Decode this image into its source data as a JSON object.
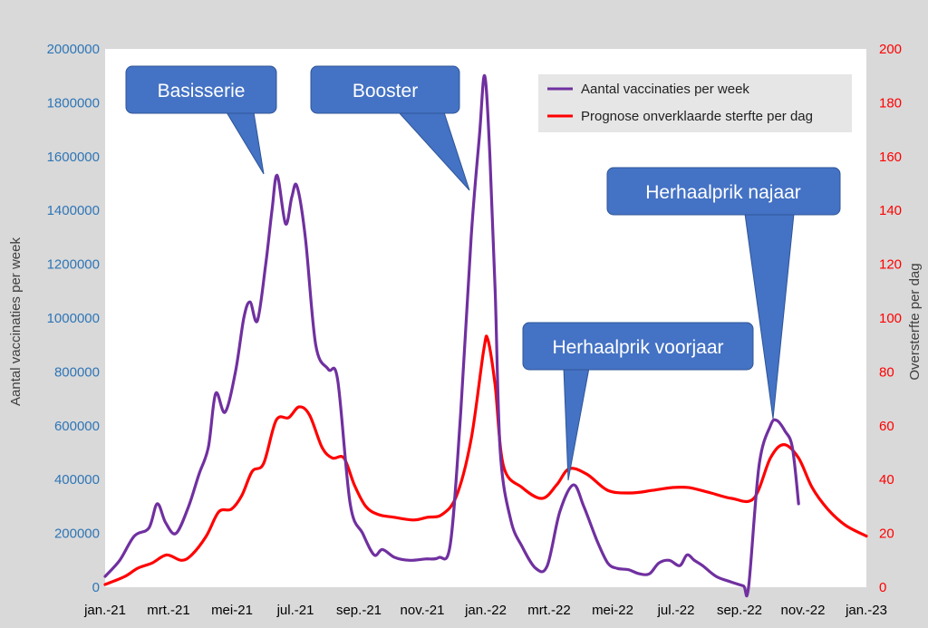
{
  "chart_data": {
    "type": "line",
    "title": "",
    "x_ticks": [
      "jan.-21",
      "mrt.-21",
      "mei-21",
      "jul.-21",
      "sep.-21",
      "nov.-21",
      "jan.-22",
      "mrt.-22",
      "mei-22",
      "jul.-22",
      "sep.-22",
      "nov.-22",
      "jan.-23"
    ],
    "x_range": [
      "2021-01-01",
      "2023-01-01"
    ],
    "ylabel_left": "Aantal vaccinaties per week",
    "ylabel_right": "Oversterfte per dag",
    "ylim_left": [
      0,
      2000000
    ],
    "ylim_right": [
      0,
      200
    ],
    "yticks_left": [
      "0",
      "200000",
      "400000",
      "600000",
      "800000",
      "1000000",
      "1200000",
      "1400000",
      "1600000",
      "1800000",
      "2000000"
    ],
    "yticks_right": [
      "0",
      "20",
      "40",
      "60",
      "80",
      "100",
      "120",
      "140",
      "160",
      "180",
      "200"
    ],
    "grid": false,
    "legend_position": "top-right",
    "legend": [
      {
        "label": "Aantal vaccinaties per week",
        "color": "#7030a0"
      },
      {
        "label": "Prognose onverklaarde sterfte per dag",
        "color": "#ff0000"
      }
    ],
    "series": [
      {
        "name": "Aantal vaccinaties per week",
        "axis": "left",
        "color": "#7030a0",
        "points": [
          [
            "2021-01-01",
            40000
          ],
          [
            "2021-01-15",
            100000
          ],
          [
            "2021-01-29",
            190000
          ],
          [
            "2021-02-12",
            220000
          ],
          [
            "2021-02-20",
            310000
          ],
          [
            "2021-02-28",
            240000
          ],
          [
            "2021-03-10",
            200000
          ],
          [
            "2021-03-22",
            300000
          ],
          [
            "2021-04-01",
            420000
          ],
          [
            "2021-04-10",
            520000
          ],
          [
            "2021-04-17",
            720000
          ],
          [
            "2021-04-26",
            650000
          ],
          [
            "2021-05-06",
            800000
          ],
          [
            "2021-05-14",
            1000000
          ],
          [
            "2021-05-20",
            1060000
          ],
          [
            "2021-05-27",
            990000
          ],
          [
            "2021-06-04",
            1200000
          ],
          [
            "2021-06-10",
            1400000
          ],
          [
            "2021-06-15",
            1530000
          ],
          [
            "2021-06-23",
            1350000
          ],
          [
            "2021-06-29",
            1450000
          ],
          [
            "2021-07-04",
            1490000
          ],
          [
            "2021-07-12",
            1300000
          ],
          [
            "2021-07-22",
            900000
          ],
          [
            "2021-08-03",
            810000
          ],
          [
            "2021-08-12",
            770000
          ],
          [
            "2021-08-24",
            310000
          ],
          [
            "2021-09-05",
            200000
          ],
          [
            "2021-09-16",
            120000
          ],
          [
            "2021-09-24",
            140000
          ],
          [
            "2021-10-06",
            110000
          ],
          [
            "2021-10-20",
            100000
          ],
          [
            "2021-11-04",
            105000
          ],
          [
            "2021-11-17",
            110000
          ],
          [
            "2021-11-28",
            160000
          ],
          [
            "2021-12-08",
            650000
          ],
          [
            "2021-12-18",
            1300000
          ],
          [
            "2021-12-26",
            1680000
          ],
          [
            "2021-12-31",
            1900000
          ],
          [
            "2022-01-05",
            1600000
          ],
          [
            "2022-01-10",
            1100000
          ],
          [
            "2022-01-15",
            500000
          ],
          [
            "2022-01-25",
            250000
          ],
          [
            "2022-02-05",
            150000
          ],
          [
            "2022-02-18",
            70000
          ],
          [
            "2022-03-01",
            80000
          ],
          [
            "2022-03-13",
            280000
          ],
          [
            "2022-03-26",
            380000
          ],
          [
            "2022-04-05",
            300000
          ],
          [
            "2022-04-18",
            170000
          ],
          [
            "2022-04-28",
            90000
          ],
          [
            "2022-05-07",
            70000
          ],
          [
            "2022-05-18",
            65000
          ],
          [
            "2022-05-28",
            50000
          ],
          [
            "2022-06-07",
            50000
          ],
          [
            "2022-06-16",
            90000
          ],
          [
            "2022-06-26",
            100000
          ],
          [
            "2022-07-06",
            80000
          ],
          [
            "2022-07-13",
            120000
          ],
          [
            "2022-07-20",
            100000
          ],
          [
            "2022-07-28",
            80000
          ],
          [
            "2022-08-10",
            40000
          ],
          [
            "2022-08-24",
            20000
          ],
          [
            "2022-09-05",
            5000
          ],
          [
            "2022-09-10",
            0
          ],
          [
            "2022-09-20",
            450000
          ],
          [
            "2022-10-01",
            600000
          ],
          [
            "2022-10-07",
            620000
          ],
          [
            "2022-10-15",
            580000
          ],
          [
            "2022-10-22",
            520000
          ],
          [
            "2022-10-28",
            310000
          ]
        ]
      },
      {
        "name": "Prognose onverklaarde sterfte per dag",
        "axis": "right",
        "color": "#ff0000",
        "points": [
          [
            "2021-01-01",
            1
          ],
          [
            "2021-01-20",
            4
          ],
          [
            "2021-02-01",
            7
          ],
          [
            "2021-02-15",
            9
          ],
          [
            "2021-03-01",
            12
          ],
          [
            "2021-03-15",
            10
          ],
          [
            "2021-03-25",
            12
          ],
          [
            "2021-04-08",
            19
          ],
          [
            "2021-04-20",
            28
          ],
          [
            "2021-05-02",
            29
          ],
          [
            "2021-05-12",
            34
          ],
          [
            "2021-05-22",
            43
          ],
          [
            "2021-06-02",
            46
          ],
          [
            "2021-06-14",
            62
          ],
          [
            "2021-06-26",
            63
          ],
          [
            "2021-07-06",
            67
          ],
          [
            "2021-07-16",
            64
          ],
          [
            "2021-07-28",
            52
          ],
          [
            "2021-08-07",
            48
          ],
          [
            "2021-08-18",
            48
          ],
          [
            "2021-08-28",
            38
          ],
          [
            "2021-09-08",
            30
          ],
          [
            "2021-09-20",
            27
          ],
          [
            "2021-10-05",
            26
          ],
          [
            "2021-10-24",
            25
          ],
          [
            "2021-11-06",
            26
          ],
          [
            "2021-11-20",
            27
          ],
          [
            "2021-12-04",
            34
          ],
          [
            "2021-12-18",
            55
          ],
          [
            "2021-12-30",
            88
          ],
          [
            "2022-01-03",
            92
          ],
          [
            "2022-01-10",
            75
          ],
          [
            "2022-01-18",
            45
          ],
          [
            "2022-02-05",
            37
          ],
          [
            "2022-02-24",
            33
          ],
          [
            "2022-03-10",
            38
          ],
          [
            "2022-03-22",
            44
          ],
          [
            "2022-04-08",
            42
          ],
          [
            "2022-04-28",
            36
          ],
          [
            "2022-05-20",
            35
          ],
          [
            "2022-06-10",
            36
          ],
          [
            "2022-06-28",
            37
          ],
          [
            "2022-07-15",
            37
          ],
          [
            "2022-08-05",
            35
          ],
          [
            "2022-08-25",
            33
          ],
          [
            "2022-09-15",
            33
          ],
          [
            "2022-10-01",
            48
          ],
          [
            "2022-10-14",
            53
          ],
          [
            "2022-10-28",
            48
          ],
          [
            "2022-11-10",
            37
          ],
          [
            "2022-11-25",
            29
          ],
          [
            "2022-12-12",
            23
          ],
          [
            "2023-01-01",
            19
          ]
        ]
      }
    ],
    "annotations": [
      {
        "text": "Basisserie",
        "date": "2021-06-15",
        "value": 1530000
      },
      {
        "text": "Booster",
        "date": "2021-12-25",
        "value": 1480000
      },
      {
        "text": "Herhaalprik voorjaar",
        "date": "2022-03-26",
        "value": 390000
      },
      {
        "text": "Herhaalprik najaar",
        "date": "2022-10-06",
        "value": 630000
      }
    ]
  },
  "colors": {
    "background": "#d9d9d9",
    "plot_background": "#ffffff",
    "left_axis_labels": "#2e75b6",
    "right_axis_labels": "#ff0000",
    "callout_fill": "#4472c4",
    "callout_border": "#2f5597"
  }
}
